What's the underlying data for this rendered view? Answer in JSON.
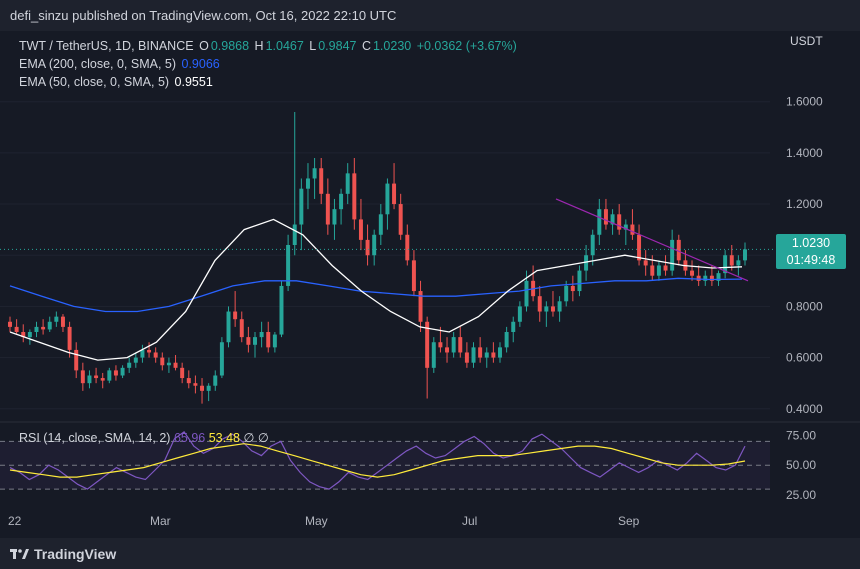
{
  "header": {
    "publisher": "defi_sinzu published on TradingView.com, Oct 16, 2022 22:10 UTC"
  },
  "legend": {
    "symbol": "TWT / TetherUS, 1D, BINANCE",
    "open_label": "O",
    "open": "0.9868",
    "high_label": "H",
    "high": "1.0467",
    "low_label": "L",
    "low": "0.9847",
    "close_label": "C",
    "close": "1.0230",
    "change": "+0.0362 (+3.67%)",
    "ema200_label": "EMA (200, close, 0, SMA, 5)",
    "ema200_value": "0.9066",
    "ema50_label": "EMA (50, close, 0, SMA, 5)",
    "ema50_value": "0.9551"
  },
  "rsi_legend": {
    "label": "RSI (14, close, SMA, 14, 2)",
    "rsi_value": "65.96",
    "sma_value": "53.48",
    "extra1": "∅",
    "extra2": "∅"
  },
  "price_label": {
    "price": "1.0230",
    "countdown": "01:49:48"
  },
  "footer": {
    "brand": "TradingView"
  },
  "colors": {
    "up": "#26a69a",
    "down": "#ef5350",
    "ema200": "#2962ff",
    "ema50": "#ffffff",
    "rsi": "#7e57c2",
    "rsi_sma": "#ffeb3b",
    "trendline": "#9c27b0",
    "background": "#161a25"
  },
  "chart_data": [
    {
      "type": "candlestick",
      "title": "TWT / TetherUS, 1D, BINANCE",
      "currency": "USDT",
      "x_ticks": [
        "22",
        "Mar",
        "May",
        "Jul",
        "Sep"
      ],
      "y_ticks": [
        "1.6000",
        "1.4000",
        "1.2000",
        "1.0000",
        "0.8000",
        "0.6000",
        "0.4000"
      ],
      "ylim": [
        0.36,
        1.72
      ],
      "last_price": 1.023,
      "candles_ohlc": [
        [
          0.74,
          0.76,
          0.7,
          0.72
        ],
        [
          0.72,
          0.75,
          0.69,
          0.7
        ],
        [
          0.7,
          0.73,
          0.66,
          0.68
        ],
        [
          0.68,
          0.71,
          0.65,
          0.7
        ],
        [
          0.7,
          0.74,
          0.68,
          0.72
        ],
        [
          0.72,
          0.75,
          0.69,
          0.71
        ],
        [
          0.71,
          0.76,
          0.7,
          0.74
        ],
        [
          0.74,
          0.78,
          0.72,
          0.76
        ],
        [
          0.76,
          0.77,
          0.7,
          0.72
        ],
        [
          0.72,
          0.74,
          0.6,
          0.63
        ],
        [
          0.63,
          0.66,
          0.52,
          0.55
        ],
        [
          0.55,
          0.58,
          0.47,
          0.5
        ],
        [
          0.5,
          0.55,
          0.48,
          0.53
        ],
        [
          0.53,
          0.56,
          0.5,
          0.52
        ],
        [
          0.52,
          0.54,
          0.48,
          0.51
        ],
        [
          0.51,
          0.56,
          0.5,
          0.55
        ],
        [
          0.55,
          0.57,
          0.51,
          0.53
        ],
        [
          0.53,
          0.57,
          0.52,
          0.56
        ],
        [
          0.56,
          0.6,
          0.54,
          0.58
        ],
        [
          0.58,
          0.62,
          0.56,
          0.6
        ],
        [
          0.6,
          0.65,
          0.58,
          0.63
        ],
        [
          0.63,
          0.66,
          0.6,
          0.62
        ],
        [
          0.62,
          0.64,
          0.58,
          0.6
        ],
        [
          0.6,
          0.62,
          0.55,
          0.57
        ],
        [
          0.57,
          0.6,
          0.54,
          0.58
        ],
        [
          0.58,
          0.61,
          0.55,
          0.56
        ],
        [
          0.56,
          0.58,
          0.5,
          0.52
        ],
        [
          0.52,
          0.55,
          0.48,
          0.5
        ],
        [
          0.5,
          0.53,
          0.46,
          0.49
        ],
        [
          0.49,
          0.52,
          0.42,
          0.47
        ],
        [
          0.47,
          0.5,
          0.43,
          0.49
        ],
        [
          0.49,
          0.55,
          0.47,
          0.53
        ],
        [
          0.53,
          0.68,
          0.52,
          0.66
        ],
        [
          0.66,
          0.8,
          0.64,
          0.78
        ],
        [
          0.78,
          0.86,
          0.72,
          0.75
        ],
        [
          0.75,
          0.78,
          0.66,
          0.68
        ],
        [
          0.68,
          0.72,
          0.62,
          0.65
        ],
        [
          0.65,
          0.7,
          0.6,
          0.68
        ],
        [
          0.68,
          0.74,
          0.64,
          0.7
        ],
        [
          0.7,
          0.74,
          0.62,
          0.64
        ],
        [
          0.64,
          0.7,
          0.62,
          0.69
        ],
        [
          0.69,
          0.9,
          0.68,
          0.88
        ],
        [
          0.88,
          1.08,
          0.86,
          1.04
        ],
        [
          1.04,
          1.56,
          1.0,
          1.12
        ],
        [
          1.12,
          1.3,
          1.02,
          1.26
        ],
        [
          1.26,
          1.36,
          1.18,
          1.3
        ],
        [
          1.3,
          1.38,
          1.22,
          1.34
        ],
        [
          1.34,
          1.38,
          1.2,
          1.24
        ],
        [
          1.24,
          1.3,
          1.08,
          1.12
        ],
        [
          1.12,
          1.22,
          1.06,
          1.18
        ],
        [
          1.18,
          1.26,
          1.12,
          1.24
        ],
        [
          1.24,
          1.36,
          1.2,
          1.32
        ],
        [
          1.32,
          1.38,
          1.1,
          1.14
        ],
        [
          1.14,
          1.22,
          1.02,
          1.06
        ],
        [
          1.06,
          1.12,
          0.96,
          1.0
        ],
        [
          1.0,
          1.1,
          0.96,
          1.08
        ],
        [
          1.08,
          1.2,
          1.04,
          1.16
        ],
        [
          1.16,
          1.3,
          1.1,
          1.28
        ],
        [
          1.28,
          1.36,
          1.18,
          1.2
        ],
        [
          1.2,
          1.24,
          1.06,
          1.08
        ],
        [
          1.08,
          1.12,
          0.96,
          0.98
        ],
        [
          0.98,
          1.02,
          0.84,
          0.86
        ],
        [
          0.86,
          0.9,
          0.7,
          0.74
        ],
        [
          0.74,
          0.76,
          0.44,
          0.56
        ],
        [
          0.56,
          0.68,
          0.54,
          0.66
        ],
        [
          0.66,
          0.72,
          0.62,
          0.64
        ],
        [
          0.64,
          0.68,
          0.58,
          0.62
        ],
        [
          0.62,
          0.7,
          0.6,
          0.68
        ],
        [
          0.68,
          0.72,
          0.6,
          0.62
        ],
        [
          0.62,
          0.66,
          0.56,
          0.58
        ],
        [
          0.58,
          0.66,
          0.56,
          0.64
        ],
        [
          0.64,
          0.68,
          0.58,
          0.6
        ],
        [
          0.6,
          0.64,
          0.56,
          0.62
        ],
        [
          0.62,
          0.66,
          0.58,
          0.6
        ],
        [
          0.6,
          0.66,
          0.58,
          0.64
        ],
        [
          0.64,
          0.72,
          0.62,
          0.7
        ],
        [
          0.7,
          0.76,
          0.66,
          0.74
        ],
        [
          0.74,
          0.82,
          0.72,
          0.8
        ],
        [
          0.8,
          0.94,
          0.78,
          0.9
        ],
        [
          0.9,
          0.96,
          0.82,
          0.84
        ],
        [
          0.84,
          0.88,
          0.74,
          0.78
        ],
        [
          0.78,
          0.82,
          0.72,
          0.8
        ],
        [
          0.8,
          0.86,
          0.76,
          0.78
        ],
        [
          0.78,
          0.84,
          0.74,
          0.82
        ],
        [
          0.82,
          0.9,
          0.8,
          0.88
        ],
        [
          0.88,
          0.92,
          0.82,
          0.86
        ],
        [
          0.86,
          0.96,
          0.84,
          0.94
        ],
        [
          0.94,
          1.04,
          0.9,
          1.0
        ],
        [
          1.0,
          1.1,
          0.96,
          1.08
        ],
        [
          1.08,
          1.22,
          1.04,
          1.18
        ],
        [
          1.18,
          1.22,
          1.1,
          1.12
        ],
        [
          1.12,
          1.18,
          1.08,
          1.16
        ],
        [
          1.16,
          1.2,
          1.08,
          1.1
        ],
        [
          1.1,
          1.14,
          1.04,
          1.12
        ],
        [
          1.12,
          1.18,
          1.06,
          1.08
        ],
        [
          1.08,
          1.12,
          0.96,
          0.98
        ],
        [
          0.98,
          1.02,
          0.92,
          0.96
        ],
        [
          0.96,
          1.0,
          0.9,
          0.92
        ],
        [
          0.92,
          0.98,
          0.9,
          0.96
        ],
        [
          0.96,
          1.0,
          0.92,
          0.94
        ],
        [
          0.94,
          1.1,
          0.92,
          1.06
        ],
        [
          1.06,
          1.08,
          0.96,
          0.98
        ],
        [
          0.98,
          1.02,
          0.92,
          0.94
        ],
        [
          0.94,
          0.98,
          0.9,
          0.92
        ],
        [
          0.92,
          0.96,
          0.88,
          0.9
        ],
        [
          0.9,
          0.94,
          0.88,
          0.92
        ],
        [
          0.92,
          0.96,
          0.88,
          0.9
        ],
        [
          0.9,
          0.94,
          0.88,
          0.93
        ],
        [
          0.93,
          1.02,
          0.91,
          1.0
        ],
        [
          1.0,
          1.04,
          0.94,
          0.96
        ],
        [
          0.96,
          1.0,
          0.92,
          0.98
        ],
        [
          0.98,
          1.05,
          0.96,
          1.023
        ]
      ],
      "ema50": [
        0.7,
        0.66,
        0.62,
        0.59,
        0.6,
        0.66,
        0.78,
        0.98,
        1.1,
        1.14,
        1.08,
        0.96,
        0.86,
        0.78,
        0.72,
        0.7,
        0.76,
        0.86,
        0.94,
        0.96,
        0.98,
        1.0,
        0.98,
        0.96,
        0.95,
        0.955
      ],
      "ema200": [
        0.88,
        0.84,
        0.8,
        0.78,
        0.78,
        0.8,
        0.84,
        0.88,
        0.9,
        0.9,
        0.88,
        0.86,
        0.85,
        0.84,
        0.84,
        0.85,
        0.86,
        0.88,
        0.89,
        0.9,
        0.9,
        0.91,
        0.905,
        0.9066
      ],
      "trendline": [
        [
          1.22,
          0.9
        ]
      ]
    },
    {
      "type": "line",
      "title": "RSI (14, close, SMA, 14, 2)",
      "y_ticks": [
        "75.00",
        "50.00",
        "25.00"
      ],
      "ylim": [
        20,
        82
      ],
      "bands": [
        30,
        50,
        70
      ],
      "series": [
        {
          "name": "RSI",
          "values": [
            48,
            44,
            38,
            42,
            50,
            46,
            40,
            34,
            30,
            36,
            42,
            48,
            44,
            40,
            38,
            46,
            54,
            72,
            78,
            66,
            60,
            64,
            72,
            76,
            70,
            62,
            58,
            66,
            70,
            54,
            44,
            36,
            32,
            30,
            36,
            44,
            40,
            38,
            44,
            50,
            56,
            62,
            66,
            60,
            56,
            58,
            64,
            70,
            74,
            68,
            60,
            56,
            58,
            62,
            72,
            76,
            70,
            64,
            56,
            48,
            44,
            40,
            46,
            52,
            48,
            44,
            48,
            54,
            50,
            46,
            52,
            60,
            54,
            48,
            46,
            50,
            66
          ]
        },
        {
          "name": "SMA",
          "values": [
            46,
            44,
            42,
            40,
            40,
            42,
            44,
            46,
            48,
            52,
            56,
            60,
            64,
            66,
            68,
            66,
            62,
            58,
            54,
            50,
            46,
            42,
            40,
            42,
            46,
            50,
            54,
            56,
            58,
            58,
            58,
            60,
            62,
            64,
            66,
            66,
            64,
            60,
            56,
            52,
            50,
            50,
            50,
            51,
            53.48
          ]
        }
      ]
    }
  ]
}
